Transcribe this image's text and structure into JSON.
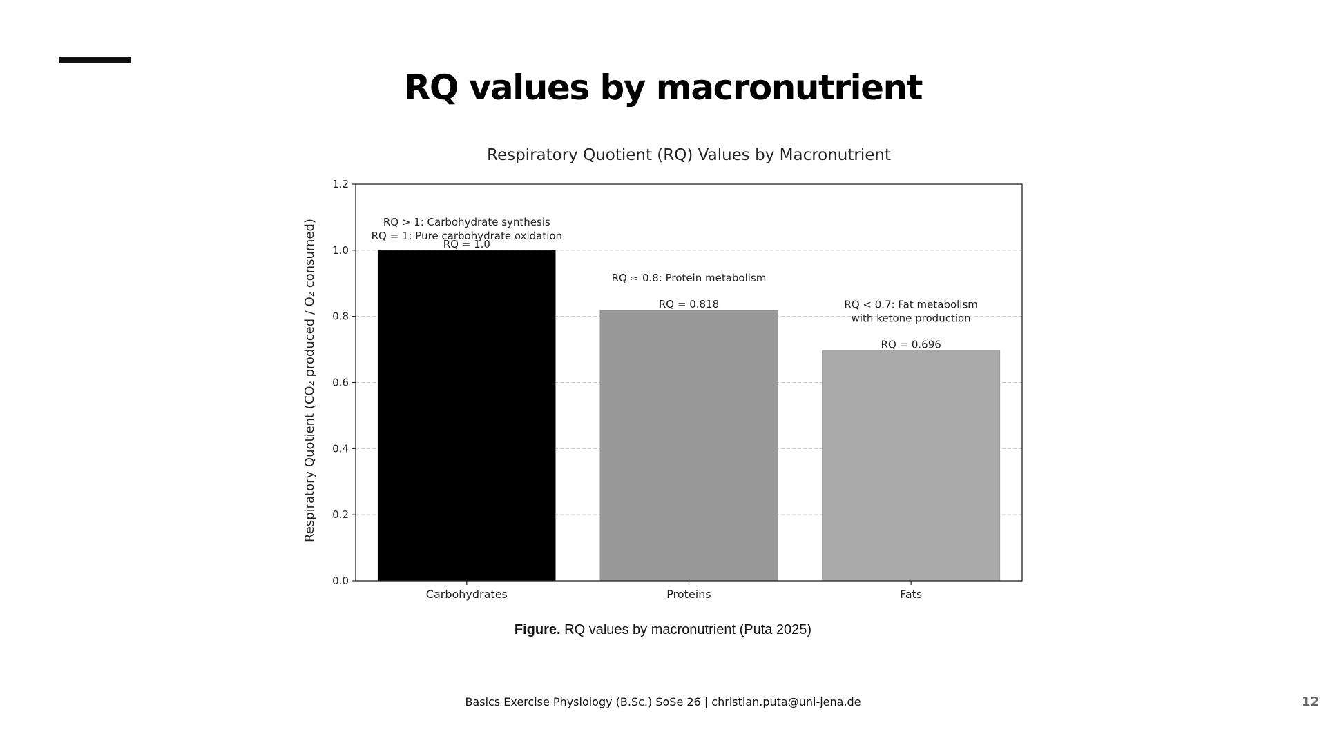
{
  "slide": {
    "title": "RQ values by macronutrient",
    "caption_bold": "Figure.",
    "caption_text": " RQ values by macronutrient (Puta 2025)",
    "footer": "Basics Exercise Physiology (B.Sc.) SoSe 26 | christian.puta@uni-jena.de",
    "page_number": "12"
  },
  "chart_data": {
    "type": "bar",
    "title": "Respiratory Quotient (RQ) Values by Macronutrient",
    "xlabel": "",
    "ylabel": "Respiratory Quotient (CO₂ produced / O₂ consumed)",
    "ylim": [
      0,
      1.2
    ],
    "yticks": [
      "0.0",
      "0.2",
      "0.4",
      "0.6",
      "0.8",
      "1.0",
      "1.2"
    ],
    "grid": "y-dashed",
    "categories": [
      "Carbohydrates",
      "Proteins",
      "Fats"
    ],
    "values": [
      1.0,
      0.818,
      0.696
    ],
    "value_labels": [
      "RQ = 1.0",
      "RQ = 0.818",
      "RQ = 0.696"
    ],
    "colors": [
      "#000000",
      "#999999",
      "#aaaaaa"
    ],
    "annotations": [
      [
        "RQ > 1: Carbohydrate synthesis",
        "RQ = 1: Pure carbohydrate oxidation"
      ],
      [
        "RQ ≈ 0.8: Protein metabolism"
      ],
      [
        "RQ < 0.7: Fat metabolism",
        "with ketone production"
      ]
    ]
  }
}
